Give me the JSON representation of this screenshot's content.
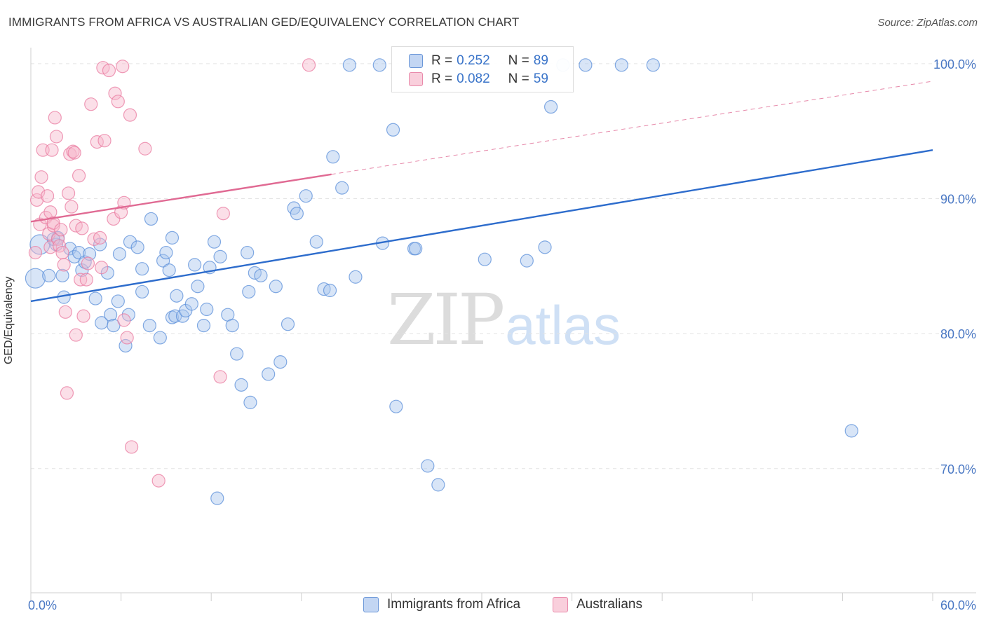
{
  "title": "IMMIGRANTS FROM AFRICA VS AUSTRALIAN GED/EQUIVALENCY CORRELATION CHART",
  "source": "Source: ZipAtlas.com",
  "watermark": {
    "part1": "ZIP",
    "part2": "atlas"
  },
  "legend": {
    "r_key": "R =",
    "n_key": "N =",
    "rows": [
      {
        "r": "0.252",
        "n": "89",
        "color": "#a9c6ee"
      },
      {
        "r": "0.082",
        "n": "59",
        "color": "#f6b8cb"
      }
    ]
  },
  "bottom_legend": [
    {
      "label": "Immigrants from Africa",
      "color": "#a9c6ee"
    },
    {
      "label": "Australians",
      "color": "#f6b8cb"
    }
  ],
  "chart_data": {
    "type": "scatter",
    "title": "IMMIGRANTS FROM AFRICA VS AUSTRALIAN GED/EQUIVALENCY CORRELATION CHART",
    "xlabel": "",
    "ylabel": "GED/Equivalency",
    "xlim": [
      0,
      60
    ],
    "ylim": [
      60.8,
      101.5
    ],
    "x_tick_labels": [
      "0.0%",
      "60.0%"
    ],
    "y_ticks": [
      70,
      80,
      90,
      100
    ],
    "y_tick_labels": [
      "70.0%",
      "80.0%",
      "90.0%",
      "100.0%"
    ],
    "grid": true,
    "legend_position": "top-center",
    "colors": {
      "blue": "#5b8fd9",
      "pink": "#ea7ba0",
      "blue_line": "#2d6ccc",
      "pink_line": "#e06a93"
    },
    "series": [
      {
        "name": "Immigrants from Africa",
        "color": "blue",
        "points": [
          [
            0.3,
            84.1
          ],
          [
            0.6,
            86.6
          ],
          [
            1.2,
            84.3
          ],
          [
            1.8,
            87.1
          ],
          [
            2.1,
            84.3
          ],
          [
            2.6,
            86.3
          ],
          [
            2.9,
            85.7
          ],
          [
            3.2,
            86.0
          ],
          [
            3.4,
            84.7
          ],
          [
            3.6,
            85.3
          ],
          [
            3.9,
            85.9
          ],
          [
            4.3,
            82.6
          ],
          [
            4.7,
            80.8
          ],
          [
            4.6,
            86.6
          ],
          [
            5.1,
            84.5
          ],
          [
            5.3,
            81.4
          ],
          [
            5.5,
            80.6
          ],
          [
            5.9,
            85.9
          ],
          [
            5.8,
            82.4
          ],
          [
            6.5,
            81.4
          ],
          [
            6.6,
            86.8
          ],
          [
            6.3,
            79.1
          ],
          [
            7.1,
            86.4
          ],
          [
            7.4,
            84.8
          ],
          [
            7.4,
            83.1
          ],
          [
            7.9,
            80.6
          ],
          [
            8.0,
            88.5
          ],
          [
            8.6,
            79.7
          ],
          [
            8.8,
            85.4
          ],
          [
            9.0,
            86.0
          ],
          [
            9.2,
            84.7
          ],
          [
            9.4,
            81.2
          ],
          [
            9.4,
            87.1
          ],
          [
            9.6,
            81.3
          ],
          [
            9.7,
            82.8
          ],
          [
            10.1,
            81.3
          ],
          [
            10.3,
            81.7
          ],
          [
            10.7,
            82.2
          ],
          [
            10.9,
            85.1
          ],
          [
            11.1,
            83.5
          ],
          [
            11.5,
            80.6
          ],
          [
            11.7,
            81.8
          ],
          [
            11.9,
            84.9
          ],
          [
            12.2,
            86.8
          ],
          [
            12.6,
            85.7
          ],
          [
            13.1,
            81.4
          ],
          [
            13.4,
            80.6
          ],
          [
            13.7,
            78.5
          ],
          [
            14.0,
            76.2
          ],
          [
            14.5,
            83.1
          ],
          [
            14.4,
            86.0
          ],
          [
            14.9,
            84.5
          ],
          [
            14.6,
            74.9
          ],
          [
            15.3,
            84.3
          ],
          [
            15.8,
            77.0
          ],
          [
            16.3,
            83.5
          ],
          [
            16.6,
            77.9
          ],
          [
            17.1,
            80.7
          ],
          [
            17.5,
            89.3
          ],
          [
            17.7,
            88.9
          ],
          [
            18.3,
            90.2
          ],
          [
            19.0,
            86.8
          ],
          [
            19.5,
            83.3
          ],
          [
            19.9,
            83.2
          ],
          [
            20.1,
            93.1
          ],
          [
            20.7,
            90.8
          ],
          [
            21.6,
            84.2
          ],
          [
            21.2,
            99.9
          ],
          [
            23.2,
            99.9
          ],
          [
            23.4,
            86.7
          ],
          [
            24.3,
            74.6
          ],
          [
            24.1,
            95.1
          ],
          [
            25.5,
            86.3
          ],
          [
            25.6,
            86.3
          ],
          [
            26.4,
            70.2
          ],
          [
            27.1,
            68.8
          ],
          [
            30.2,
            85.5
          ],
          [
            33.0,
            85.4
          ],
          [
            34.2,
            86.4
          ],
          [
            34.6,
            96.8
          ],
          [
            35.4,
            99.9
          ],
          [
            36.9,
            99.9
          ],
          [
            39.3,
            99.9
          ],
          [
            41.4,
            99.9
          ],
          [
            54.6,
            72.8
          ],
          [
            12.4,
            67.8
          ],
          [
            1.7,
            86.6
          ],
          [
            1.5,
            87.0
          ],
          [
            2.2,
            82.7
          ]
        ]
      },
      {
        "name": "Australians",
        "color": "pink",
        "points": [
          [
            0.3,
            86.0
          ],
          [
            0.4,
            89.9
          ],
          [
            0.5,
            90.5
          ],
          [
            0.6,
            88.1
          ],
          [
            0.7,
            91.6
          ],
          [
            0.8,
            93.6
          ],
          [
            1.0,
            88.6
          ],
          [
            1.1,
            90.2
          ],
          [
            1.2,
            87.4
          ],
          [
            1.3,
            89.0
          ],
          [
            1.3,
            86.4
          ],
          [
            1.4,
            93.6
          ],
          [
            1.5,
            88.0
          ],
          [
            1.5,
            88.2
          ],
          [
            1.6,
            96.0
          ],
          [
            1.7,
            94.6
          ],
          [
            1.8,
            87.0
          ],
          [
            1.9,
            86.5
          ],
          [
            2.0,
            87.7
          ],
          [
            2.1,
            86.0
          ],
          [
            2.2,
            85.1
          ],
          [
            2.3,
            81.6
          ],
          [
            2.4,
            75.6
          ],
          [
            2.6,
            93.3
          ],
          [
            2.5,
            90.4
          ],
          [
            2.7,
            89.4
          ],
          [
            2.8,
            93.5
          ],
          [
            2.9,
            93.4
          ],
          [
            3.0,
            79.9
          ],
          [
            3.0,
            88.0
          ],
          [
            3.2,
            91.7
          ],
          [
            3.3,
            84.0
          ],
          [
            3.4,
            87.8
          ],
          [
            3.5,
            81.3
          ],
          [
            3.7,
            84.0
          ],
          [
            3.8,
            85.2
          ],
          [
            4.0,
            97.0
          ],
          [
            4.2,
            87.0
          ],
          [
            4.4,
            94.2
          ],
          [
            4.6,
            87.1
          ],
          [
            4.7,
            84.9
          ],
          [
            4.8,
            99.7
          ],
          [
            4.9,
            94.3
          ],
          [
            5.2,
            99.5
          ],
          [
            5.5,
            88.5
          ],
          [
            5.6,
            97.8
          ],
          [
            5.8,
            97.2
          ],
          [
            6.0,
            89.0
          ],
          [
            6.1,
            99.8
          ],
          [
            6.2,
            81.0
          ],
          [
            6.2,
            89.7
          ],
          [
            6.4,
            79.7
          ],
          [
            6.6,
            96.2
          ],
          [
            6.7,
            71.6
          ],
          [
            7.6,
            93.7
          ],
          [
            8.5,
            69.1
          ],
          [
            12.6,
            76.8
          ],
          [
            12.8,
            88.9
          ],
          [
            18.5,
            99.9
          ]
        ]
      }
    ],
    "trend_lines": [
      {
        "series": "Immigrants from Africa",
        "x": [
          0,
          60
        ],
        "y": [
          82.4,
          93.6
        ],
        "style": "solid"
      },
      {
        "series": "Australians",
        "x": [
          0,
          20
        ],
        "y": [
          88.3,
          91.8
        ],
        "style": "solid"
      },
      {
        "series": "Australians",
        "x": [
          20,
          60
        ],
        "y": [
          91.8,
          98.7
        ],
        "style": "dashed"
      }
    ]
  }
}
